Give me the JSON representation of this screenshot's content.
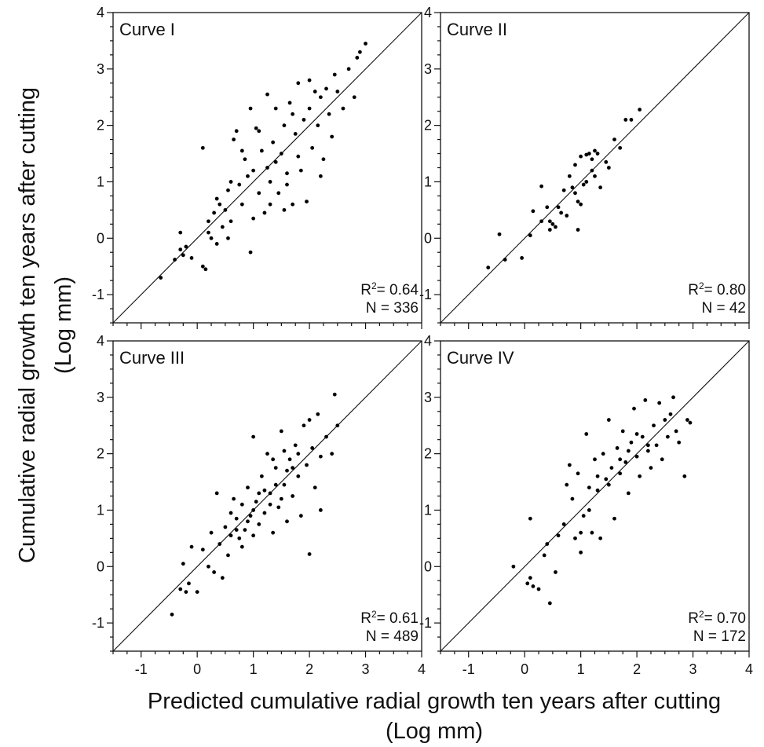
{
  "figure": {
    "ylabel": "Cumulative radial growth ten years after cutting",
    "ylabel_unit": "(Log mm)",
    "xlabel": "Predicted cumulative radial growth ten years after cutting",
    "xlabel_unit": "(Log mm)"
  },
  "chart_data": [
    {
      "type": "scatter",
      "title": "Curve I",
      "r2_label": "R",
      "r2_value": "= 0.64",
      "n_label": "N = 336",
      "xlim": [
        -1.5,
        4
      ],
      "ylim": [
        -1.5,
        4
      ],
      "reference_line": "1:1",
      "yticks": [
        "-1",
        "0",
        "1",
        "2",
        "3",
        "4"
      ],
      "points": [
        [
          -0.65,
          -0.7
        ],
        [
          -0.4,
          -0.38
        ],
        [
          -0.3,
          0.1
        ],
        [
          -0.3,
          -0.2
        ],
        [
          -0.25,
          -0.3
        ],
        [
          -0.2,
          -0.15
        ],
        [
          -0.1,
          -0.35
        ],
        [
          0.1,
          -0.5
        ],
        [
          0.15,
          -0.55
        ],
        [
          0.1,
          1.6
        ],
        [
          0.2,
          0.3
        ],
        [
          0.25,
          0.0
        ],
        [
          0.3,
          0.45
        ],
        [
          0.35,
          0.7
        ],
        [
          0.35,
          -0.1
        ],
        [
          0.4,
          0.6
        ],
        [
          0.45,
          0.2
        ],
        [
          0.5,
          0.5
        ],
        [
          0.55,
          0.85
        ],
        [
          0.6,
          0.3
        ],
        [
          0.65,
          1.75
        ],
        [
          0.7,
          1.9
        ],
        [
          0.75,
          0.95
        ],
        [
          0.8,
          0.6
        ],
        [
          0.85,
          1.4
        ],
        [
          0.9,
          1.1
        ],
        [
          0.95,
          -0.25
        ],
        [
          0.95,
          2.3
        ],
        [
          1.0,
          1.2
        ],
        [
          1.0,
          0.35
        ],
        [
          1.05,
          1.95
        ],
        [
          1.1,
          0.8
        ],
        [
          1.15,
          1.55
        ],
        [
          1.2,
          0.45
        ],
        [
          1.25,
          2.55
        ],
        [
          1.3,
          1.0
        ],
        [
          1.35,
          1.7
        ],
        [
          1.4,
          2.3
        ],
        [
          1.45,
          0.8
        ],
        [
          1.5,
          1.5
        ],
        [
          1.55,
          2.0
        ],
        [
          1.6,
          1.15
        ],
        [
          1.65,
          2.4
        ],
        [
          1.7,
          0.6
        ],
        [
          1.75,
          1.85
        ],
        [
          1.8,
          2.75
        ],
        [
          1.85,
          1.2
        ],
        [
          1.9,
          2.1
        ],
        [
          1.95,
          0.65
        ],
        [
          2.0,
          2.3
        ],
        [
          2.05,
          1.6
        ],
        [
          2.1,
          2.6
        ],
        [
          2.15,
          2.0
        ],
        [
          2.2,
          2.5
        ],
        [
          2.25,
          1.4
        ],
        [
          2.3,
          2.65
        ],
        [
          2.35,
          2.2
        ],
        [
          2.4,
          1.8
        ],
        [
          2.45,
          2.9
        ],
        [
          2.5,
          2.6
        ],
        [
          2.6,
          2.3
        ],
        [
          2.7,
          3.0
        ],
        [
          2.8,
          2.5
        ],
        [
          2.85,
          3.2
        ],
        [
          2.9,
          3.3
        ],
        [
          3.0,
          3.45
        ],
        [
          1.3,
          0.6
        ],
        [
          1.6,
          0.95
        ],
        [
          0.55,
          0.0
        ],
        [
          0.2,
          0.1
        ],
        [
          1.8,
          1.45
        ],
        [
          2.0,
          2.8
        ],
        [
          1.1,
          1.9
        ],
        [
          0.8,
          1.55
        ],
        [
          1.4,
          1.35
        ],
        [
          1.7,
          2.2
        ],
        [
          2.2,
          1.1
        ],
        [
          1.55,
          0.5
        ],
        [
          0.6,
          1.0
        ],
        [
          1.25,
          1.25
        ]
      ]
    },
    {
      "type": "scatter",
      "title": "Curve II",
      "r2_label": "R",
      "r2_value": "= 0.80",
      "n_label": "N = 42",
      "xlim": [
        -1.5,
        4
      ],
      "ylim": [
        -1.5,
        4
      ],
      "reference_line": "1:1",
      "yticks": [
        "-1",
        "0",
        "1",
        "2",
        "3",
        "4"
      ],
      "points": [
        [
          -0.65,
          -0.52
        ],
        [
          -0.45,
          0.07
        ],
        [
          -0.35,
          -0.38
        ],
        [
          -0.05,
          -0.35
        ],
        [
          0.1,
          0.05
        ],
        [
          0.15,
          0.48
        ],
        [
          0.3,
          0.92
        ],
        [
          0.3,
          0.3
        ],
        [
          0.4,
          0.55
        ],
        [
          0.45,
          0.15
        ],
        [
          0.45,
          0.3
        ],
        [
          0.55,
          0.2
        ],
        [
          0.6,
          0.55
        ],
        [
          0.65,
          0.45
        ],
        [
          0.7,
          0.85
        ],
        [
          0.8,
          1.1
        ],
        [
          0.85,
          0.9
        ],
        [
          0.9,
          1.3
        ],
        [
          0.9,
          0.8
        ],
        [
          0.95,
          0.65
        ],
        [
          0.95,
          0.15
        ],
        [
          1.0,
          1.45
        ],
        [
          1.0,
          0.6
        ],
        [
          1.05,
          0.95
        ],
        [
          1.1,
          1.0
        ],
        [
          1.1,
          1.48
        ],
        [
          1.15,
          1.5
        ],
        [
          1.2,
          1.4
        ],
        [
          1.25,
          1.55
        ],
        [
          1.25,
          1.1
        ],
        [
          1.3,
          1.5
        ],
        [
          1.35,
          0.9
        ],
        [
          1.45,
          1.35
        ],
        [
          1.5,
          1.25
        ],
        [
          1.6,
          1.75
        ],
        [
          1.7,
          1.6
        ],
        [
          1.8,
          2.1
        ],
        [
          1.9,
          2.1
        ],
        [
          2.05,
          2.28
        ],
        [
          1.2,
          1.2
        ],
        [
          0.75,
          0.4
        ],
        [
          0.5,
          0.25
        ]
      ]
    },
    {
      "type": "scatter",
      "title": "Curve III",
      "r2_label": "R",
      "r2_value": "= 0.61",
      "n_label": "N = 489",
      "xlim": [
        -1.5,
        4
      ],
      "ylim": [
        -1.5,
        4
      ],
      "reference_line": "1:1",
      "xticks": [
        "-1",
        "0",
        "1",
        "2",
        "3",
        "4"
      ],
      "yticks": [
        "-1",
        "0",
        "1",
        "2",
        "3",
        "4"
      ],
      "points": [
        [
          -0.45,
          -0.85
        ],
        [
          -0.3,
          -0.4
        ],
        [
          -0.25,
          0.05
        ],
        [
          -0.2,
          -0.45
        ],
        [
          -0.15,
          -0.3
        ],
        [
          -0.1,
          0.35
        ],
        [
          0.0,
          -0.45
        ],
        [
          0.1,
          0.3
        ],
        [
          0.2,
          0.0
        ],
        [
          0.25,
          0.6
        ],
        [
          0.3,
          -0.1
        ],
        [
          0.35,
          1.3
        ],
        [
          0.4,
          0.4
        ],
        [
          0.45,
          -0.2
        ],
        [
          0.5,
          0.7
        ],
        [
          0.55,
          0.2
        ],
        [
          0.6,
          0.55
        ],
        [
          0.65,
          1.2
        ],
        [
          0.7,
          0.85
        ],
        [
          0.75,
          0.5
        ],
        [
          0.8,
          1.1
        ],
        [
          0.85,
          0.65
        ],
        [
          0.9,
          1.4
        ],
        [
          0.95,
          0.9
        ],
        [
          1.0,
          2.3
        ],
        [
          1.0,
          0.55
        ],
        [
          1.05,
          1.15
        ],
        [
          1.1,
          0.75
        ],
        [
          1.15,
          1.6
        ],
        [
          1.2,
          0.95
        ],
        [
          1.25,
          2.0
        ],
        [
          1.3,
          1.3
        ],
        [
          1.35,
          0.6
        ],
        [
          1.4,
          1.75
        ],
        [
          1.45,
          1.05
        ],
        [
          1.5,
          2.4
        ],
        [
          1.55,
          1.45
        ],
        [
          1.6,
          0.8
        ],
        [
          1.65,
          1.9
        ],
        [
          1.7,
          1.25
        ],
        [
          1.75,
          2.15
        ],
        [
          1.8,
          1.6
        ],
        [
          1.85,
          0.9
        ],
        [
          1.9,
          2.5
        ],
        [
          1.95,
          1.8
        ],
        [
          2.0,
          0.22
        ],
        [
          2.05,
          2.1
        ],
        [
          2.1,
          1.4
        ],
        [
          2.15,
          2.7
        ],
        [
          2.2,
          1.95
        ],
        [
          2.3,
          2.3
        ],
        [
          2.4,
          2.0
        ],
        [
          2.45,
          3.05
        ],
        [
          2.5,
          2.5
        ],
        [
          1.2,
          1.35
        ],
        [
          1.4,
          1.45
        ],
        [
          1.6,
          1.7
        ],
        [
          1.3,
          1.1
        ],
        [
          0.9,
          0.8
        ],
        [
          1.1,
          1.3
        ],
        [
          1.7,
          1.75
        ],
        [
          1.5,
          1.2
        ],
        [
          0.7,
          0.65
        ],
        [
          1.0,
          1.0
        ],
        [
          1.8,
          2.0
        ],
        [
          2.2,
          1.0
        ],
        [
          0.6,
          0.95
        ],
        [
          1.35,
          1.9
        ],
        [
          1.55,
          2.05
        ],
        [
          0.8,
          0.35
        ],
        [
          2.0,
          2.6
        ]
      ]
    },
    {
      "type": "scatter",
      "title": "Curve IV",
      "r2_label": "R",
      "r2_value": "= 0.70",
      "n_label": "N = 172",
      "xlim": [
        -1.5,
        4
      ],
      "ylim": [
        -1.5,
        4
      ],
      "reference_line": "1:1",
      "xticks": [
        "-1",
        "0",
        "1",
        "2",
        "3",
        "4"
      ],
      "yticks": [
        "-1",
        "0",
        "1",
        "2",
        "3",
        "4"
      ],
      "points": [
        [
          -0.2,
          -0.0
        ],
        [
          0.05,
          -0.3
        ],
        [
          0.1,
          0.85
        ],
        [
          0.1,
          -0.2
        ],
        [
          0.15,
          -0.35
        ],
        [
          0.25,
          -0.4
        ],
        [
          0.35,
          0.2
        ],
        [
          0.4,
          0.4
        ],
        [
          0.45,
          -0.65
        ],
        [
          0.55,
          -0.1
        ],
        [
          0.6,
          0.55
        ],
        [
          0.7,
          0.75
        ],
        [
          0.8,
          1.8
        ],
        [
          0.85,
          1.2
        ],
        [
          0.9,
          0.5
        ],
        [
          0.95,
          1.65
        ],
        [
          1.0,
          0.25
        ],
        [
          1.05,
          0.9
        ],
        [
          1.1,
          2.35
        ],
        [
          1.15,
          1.4
        ],
        [
          1.2,
          0.6
        ],
        [
          1.25,
          1.9
        ],
        [
          1.3,
          1.35
        ],
        [
          1.35,
          0.5
        ],
        [
          1.4,
          2.0
        ],
        [
          1.45,
          1.55
        ],
        [
          1.5,
          2.6
        ],
        [
          1.55,
          1.75
        ],
        [
          1.6,
          0.85
        ],
        [
          1.65,
          2.1
        ],
        [
          1.7,
          1.65
        ],
        [
          1.75,
          2.4
        ],
        [
          1.8,
          1.85
        ],
        [
          1.85,
          1.3
        ],
        [
          1.9,
          2.2
        ],
        [
          1.95,
          2.8
        ],
        [
          2.0,
          1.95
        ],
        [
          2.05,
          1.6
        ],
        [
          2.1,
          2.3
        ],
        [
          2.15,
          2.95
        ],
        [
          2.2,
          2.05
        ],
        [
          2.25,
          1.75
        ],
        [
          2.3,
          2.5
        ],
        [
          2.35,
          2.15
        ],
        [
          2.4,
          2.9
        ],
        [
          2.45,
          1.9
        ],
        [
          2.5,
          2.6
        ],
        [
          2.55,
          2.3
        ],
        [
          2.6,
          2.7
        ],
        [
          2.65,
          3.0
        ],
        [
          2.7,
          2.4
        ],
        [
          2.75,
          2.2
        ],
        [
          2.85,
          1.6
        ],
        [
          2.9,
          2.6
        ],
        [
          2.95,
          2.55
        ],
        [
          1.3,
          1.6
        ],
        [
          1.7,
          1.9
        ],
        [
          2.0,
          2.35
        ],
        [
          1.5,
          1.45
        ],
        [
          1.85,
          2.05
        ],
        [
          1.15,
          1.0
        ],
        [
          2.2,
          2.15
        ],
        [
          1.0,
          0.6
        ],
        [
          0.75,
          1.45
        ]
      ]
    }
  ]
}
